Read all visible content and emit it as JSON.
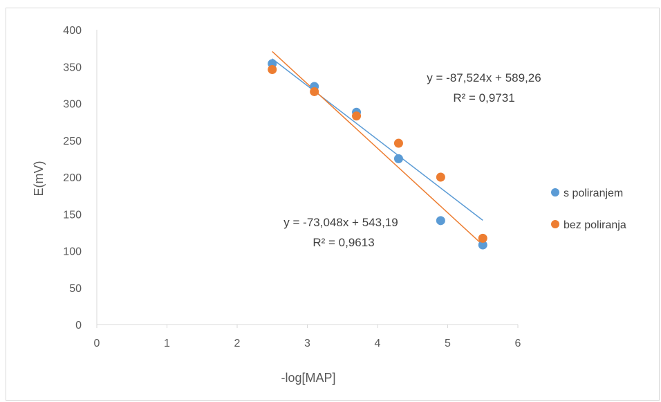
{
  "chart_data": {
    "type": "scatter",
    "title": "",
    "xlabel": "-log[MAP]",
    "ylabel": "E(mV)",
    "xlim": [
      0,
      6
    ],
    "ylim": [
      0,
      400
    ],
    "xticks": [
      0,
      1,
      2,
      3,
      4,
      5,
      6
    ],
    "yticks": [
      0,
      50,
      100,
      150,
      200,
      250,
      300,
      350,
      400
    ],
    "grid": false,
    "legend_position": "right",
    "series": [
      {
        "name": "s poliranjem",
        "color": "#5b9bd5",
        "x": [
          2.5,
          3.1,
          3.7,
          4.3,
          4.9,
          5.5
        ],
        "y": [
          354,
          323,
          288,
          225,
          141,
          108
        ],
        "trendline": {
          "slope": -73.048,
          "intercept": 543.19,
          "x_range": [
            2.5,
            5.5
          ]
        },
        "equation": "y = -73,048x + 543,19",
        "r2": "R² = 0,9613"
      },
      {
        "name": "bez poliranja",
        "color": "#ed7d31",
        "x": [
          2.5,
          3.1,
          3.7,
          4.3,
          4.9,
          5.5
        ],
        "y": [
          346,
          316,
          283,
          246,
          200,
          117
        ],
        "trendline": {
          "slope": -87.524,
          "intercept": 589.26,
          "x_range": [
            2.5,
            5.5
          ]
        },
        "equation": "y = -87,524x + 589,26",
        "r2": "R² = 0,9731"
      }
    ]
  }
}
